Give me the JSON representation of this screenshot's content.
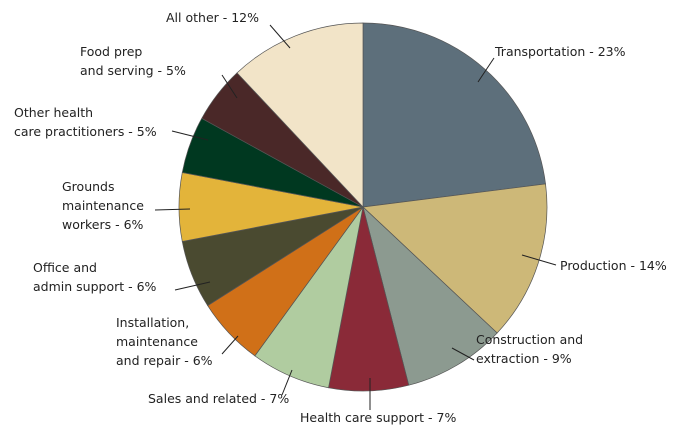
{
  "chart_data": {
    "type": "pie",
    "categories": [
      [
        "Transportation - 23%"
      ],
      [
        "Production - 14%"
      ],
      [
        "Construction and",
        "extraction - 9%"
      ],
      [
        "Health care support - 7%"
      ],
      [
        "Sales and related - 7%"
      ],
      [
        "Installation,",
        "maintenance",
        "and repair - 6%"
      ],
      [
        "Office and",
        "admin support - 6%"
      ],
      [
        "Grounds",
        "maintenance",
        "workers - 6%"
      ],
      [
        "Other health",
        "care practitioners - 5%"
      ],
      [
        "Food prep",
        "and serving - 5%"
      ],
      [
        "All other - 12%"
      ]
    ],
    "values": [
      23,
      14,
      9,
      7,
      7,
      6,
      6,
      6,
      5,
      5,
      12
    ],
    "colors": [
      "#5d6f7b",
      "#cdb878",
      "#8c9a90",
      "#8a2a38",
      "#b0cca0",
      "#d07018",
      "#4a4a30",
      "#e3b43a",
      "#003820",
      "#4a2828",
      "#f2e4c8"
    ]
  }
}
